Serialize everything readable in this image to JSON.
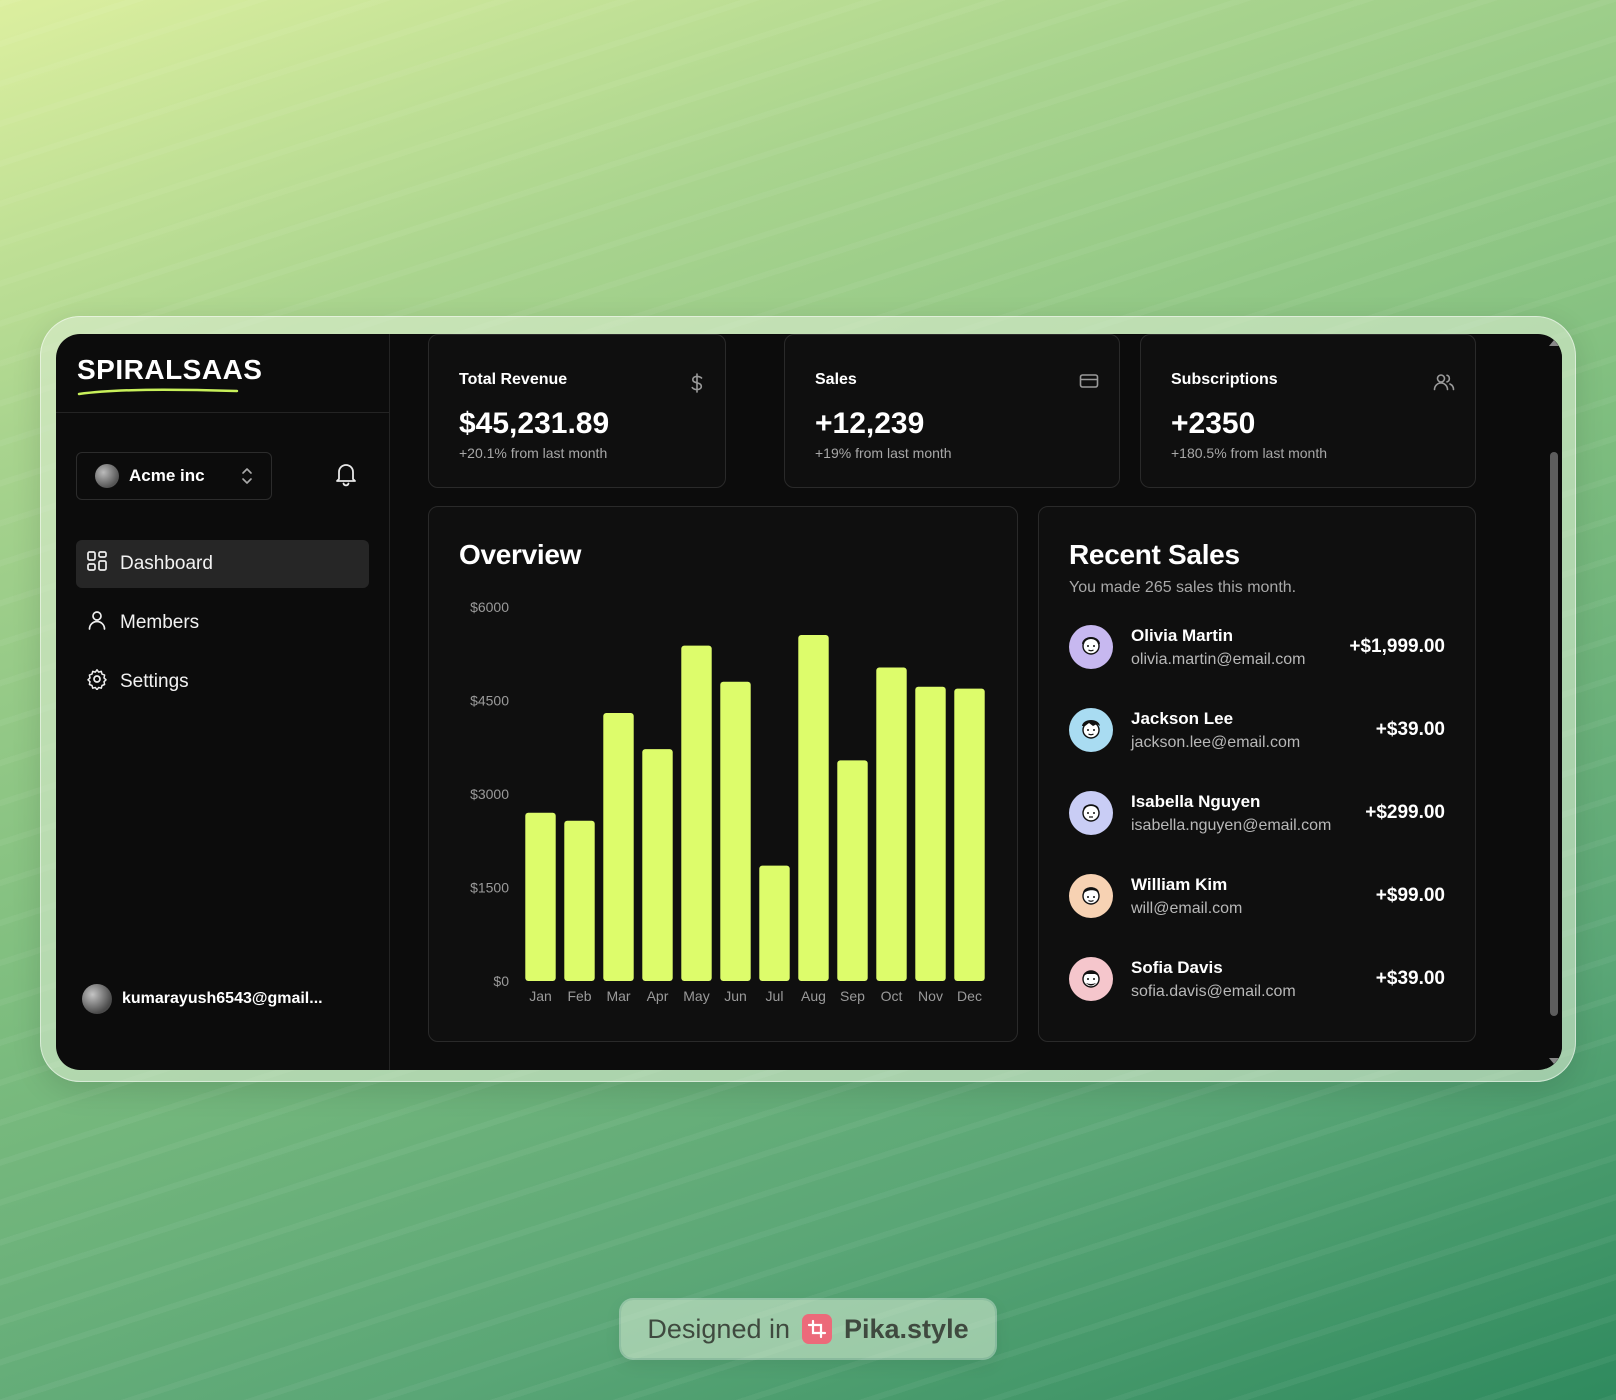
{
  "brand": {
    "name": "SPIRALSAAS",
    "underline_color": "#c8f05a"
  },
  "workspace": {
    "name": "Acme inc"
  },
  "nav": [
    {
      "label": "Dashboard",
      "icon": "grid-icon",
      "active": true
    },
    {
      "label": "Members",
      "icon": "user-icon",
      "active": false
    },
    {
      "label": "Settings",
      "icon": "gear-icon",
      "active": false
    }
  ],
  "user": {
    "email": "kumarayush6543@gmail..."
  },
  "stats": [
    {
      "title": "Total Revenue",
      "value": "$45,231.89",
      "change": "+20.1% from last month",
      "icon": "dollar-icon"
    },
    {
      "title": "Sales",
      "value": "+12,239",
      "change": "+19% from last month",
      "icon": "credit-card-icon"
    },
    {
      "title": "Subscriptions",
      "value": "+2350",
      "change": "+180.5% from last month",
      "icon": "users-icon"
    }
  ],
  "overview": {
    "title": "Overview"
  },
  "chart_data": {
    "type": "bar",
    "title": "Overview",
    "categories": [
      "Jan",
      "Feb",
      "Mar",
      "Apr",
      "May",
      "Jun",
      "Jul",
      "Aug",
      "Sep",
      "Oct",
      "Nov",
      "Dec"
    ],
    "values": [
      2700,
      2570,
      4300,
      3720,
      5380,
      4800,
      1850,
      5550,
      3540,
      5030,
      4720,
      4690
    ],
    "y_ticks": [
      "$6000",
      "$4500",
      "$3000",
      "$1500",
      "$0"
    ],
    "ylim": [
      0,
      6000
    ],
    "xlabel": "",
    "ylabel": "",
    "bar_color": "#ddfc6b",
    "grid": false
  },
  "recent_sales": {
    "title": "Recent Sales",
    "subtitle": "You made 265 sales this month.",
    "items": [
      {
        "name": "Olivia Martin",
        "email": "olivia.martin@email.com",
        "amount": "+$1,999.00",
        "avatar_bg": "#c7b8f0"
      },
      {
        "name": "Jackson Lee",
        "email": "jackson.lee@email.com",
        "amount": "+$39.00",
        "avatar_bg": "#a9dcf2"
      },
      {
        "name": "Isabella Nguyen",
        "email": "isabella.nguyen@email.com",
        "amount": "+$299.00",
        "avatar_bg": "#c9cdf5"
      },
      {
        "name": "William Kim",
        "email": "will@email.com",
        "amount": "+$99.00",
        "avatar_bg": "#f7d2b3"
      },
      {
        "name": "Sofia Davis",
        "email": "sofia.davis@email.com",
        "amount": "+$39.00",
        "avatar_bg": "#f5c6cc"
      }
    ]
  },
  "badge": {
    "prefix": "Designed in",
    "brand": "Pika.style"
  }
}
